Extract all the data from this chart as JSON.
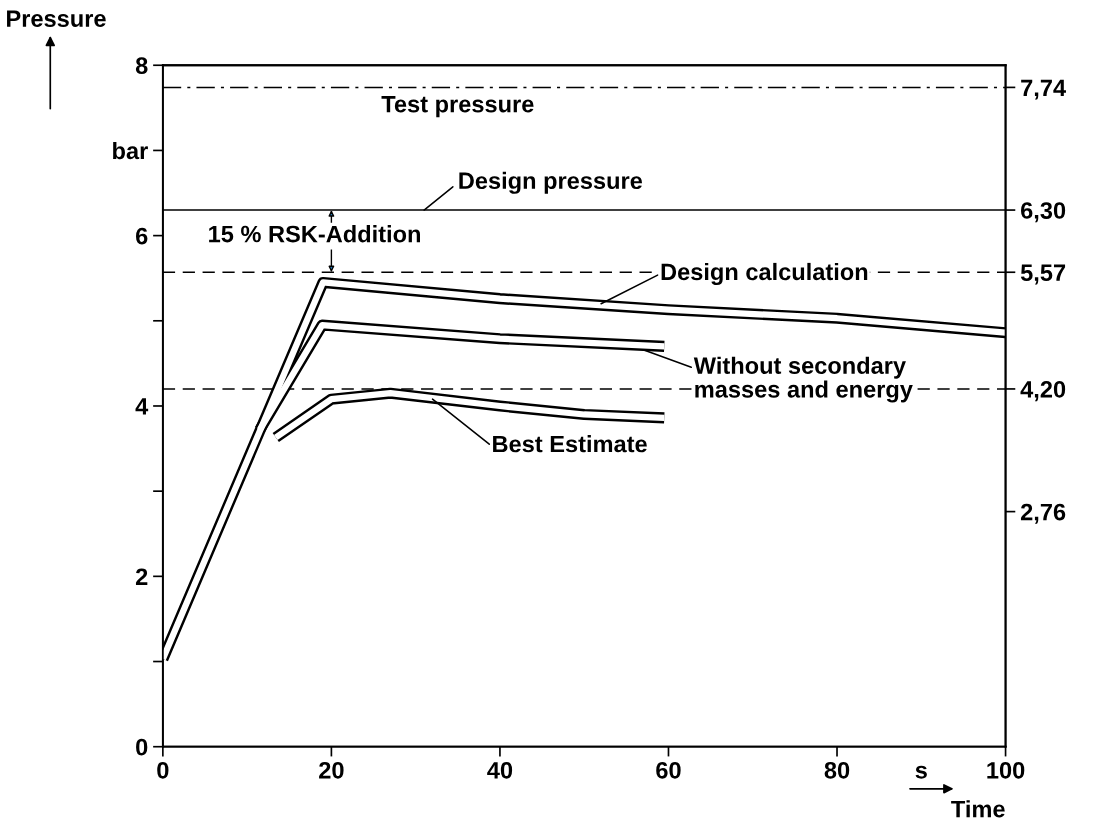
{
  "chart_data": {
    "type": "line",
    "xlabel": "Time",
    "ylabel": "Pressure",
    "xlim": [
      0,
      100
    ],
    "ylim": [
      0,
      8
    ],
    "y2lim": [
      0,
      8
    ],
    "xticks": [
      0,
      20,
      40,
      60,
      80,
      {
        "value": 90,
        "label": "s"
      },
      100
    ],
    "yticks": [
      0,
      {
        "value": 1,
        "label": null
      },
      2,
      {
        "value": 3,
        "label": null
      },
      4,
      {
        "value": 5,
        "label": null
      },
      6,
      {
        "value": 7,
        "label": "bar"
      },
      8
    ],
    "y2ticks": [
      {
        "value": 2.76,
        "label": "2,76"
      },
      {
        "value": 4.2,
        "label": "4,20"
      },
      {
        "value": 5.57,
        "label": "5,57"
      },
      {
        "value": 6.3,
        "label": "6,30"
      },
      {
        "value": 7.74,
        "label": "7,74"
      }
    ],
    "grid": false,
    "marker": "none",
    "series": [
      {
        "color": "#000000",
        "x": [
          0,
          19,
          40,
          60,
          80,
          100
        ],
        "values": [
          1.03,
          5.45,
          5.26,
          5.13,
          5.03,
          4.86
        ]
      },
      {
        "color": "#000000",
        "x": [
          11.5,
          18.9,
          40,
          59.5
        ],
        "values": [
          3.72,
          4.95,
          4.79,
          4.7
        ]
      },
      {
        "color": "#000000",
        "x": [
          13.4,
          20,
          27,
          40,
          50,
          59.5
        ],
        "values": [
          3.63,
          4.08,
          4.15,
          4.0,
          3.9,
          3.86
        ]
      }
    ],
    "ref_lines": [
      {
        "axis": "y",
        "value": 7.74,
        "label": "Test pressure",
        "line_style": "dashdot"
      },
      {
        "axis": "y",
        "value": 6.3,
        "label": "Design pressure",
        "line_style": "solid"
      },
      {
        "axis": "y",
        "value": 5.57,
        "line_style": "dashed"
      },
      {
        "axis": "y",
        "value": 4.2,
        "line_style": "dashed"
      }
    ],
    "annotations": [
      "15 % RSK-Addition",
      {
        "text": "Design calculation",
        "x": 52,
        "y": 5.2
      },
      {
        "text": "Without secondary\nmasses and energy",
        "x": 57,
        "y": 4.66
      },
      {
        "text": "Best Estimate",
        "x": 32,
        "y": 4.08
      }
    ]
  }
}
